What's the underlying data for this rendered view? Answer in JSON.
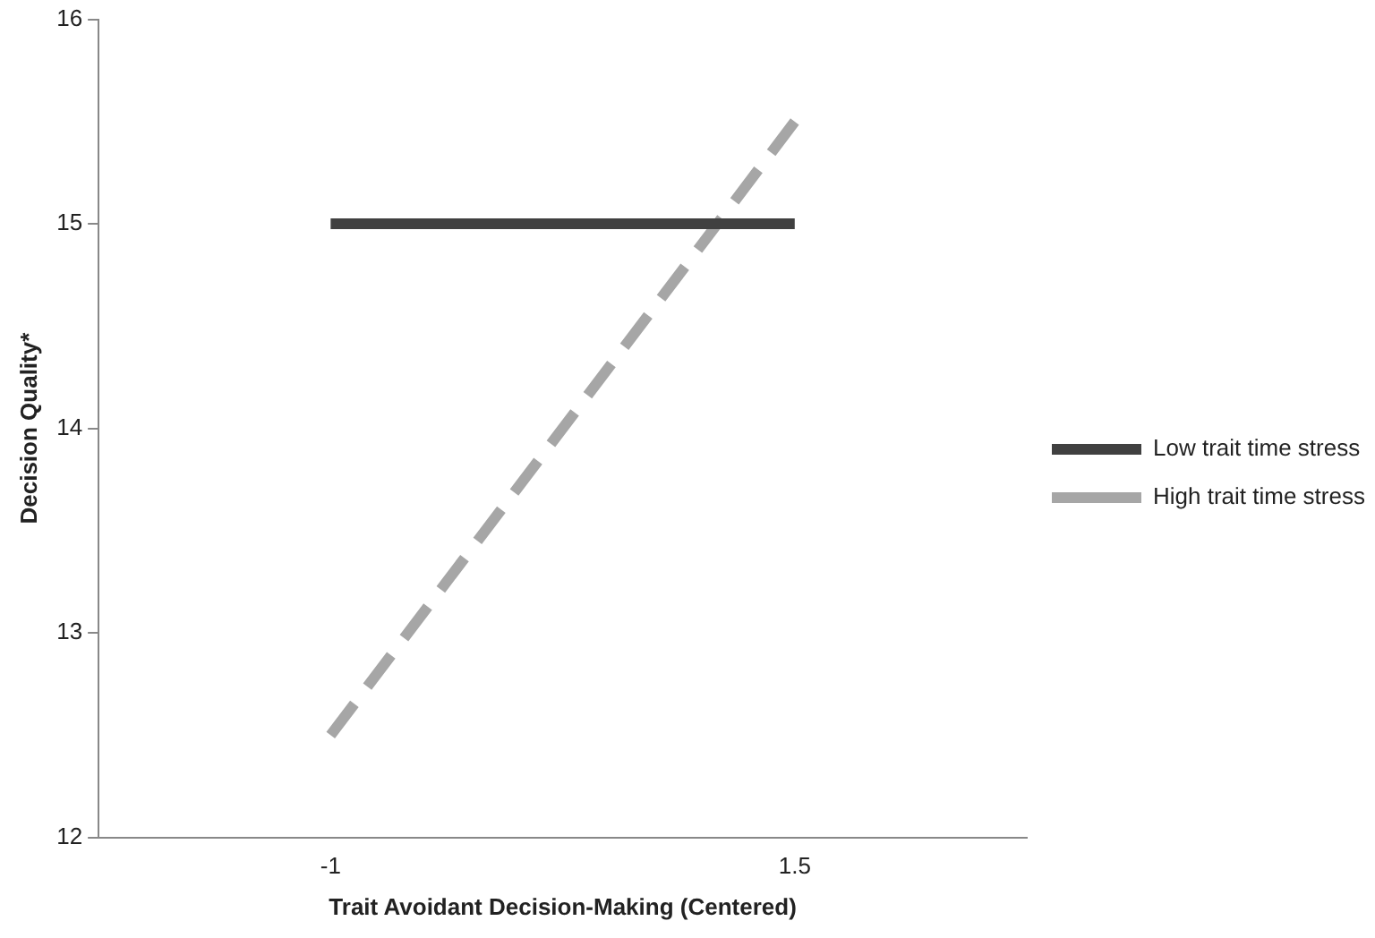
{
  "chart_data": {
    "type": "line",
    "xlabel": "Trait Avoidant Decision-Making (Centered)",
    "ylabel": "Decision Quality*",
    "categories": [
      "-1",
      "1.5"
    ],
    "series": [
      {
        "name": "Low trait time stress",
        "color": "#404040",
        "values": [
          15,
          15
        ],
        "line_style": "solid"
      },
      {
        "name": "High trait time stress",
        "color": "#a6a6a6",
        "values": [
          12.5,
          15.5
        ],
        "line_style": "dashed"
      }
    ],
    "ylim": [
      12,
      16
    ],
    "yticks": [
      12,
      13,
      14,
      15,
      16
    ],
    "grid": false,
    "legend": "right",
    "marker": "none"
  }
}
